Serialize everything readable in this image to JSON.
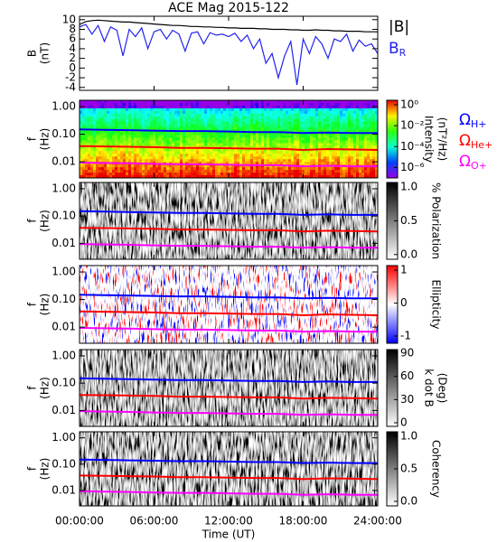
{
  "title": "ACE Mag 2015-122",
  "chart_data": [
    {
      "type": "line",
      "ylabel": [
        "B",
        "(nT)"
      ],
      "xlim": [
        0,
        24
      ],
      "ylim": [
        -4.6,
        10.7
      ],
      "yticks": [
        -4,
        -2,
        0,
        2,
        4,
        6,
        8,
        10
      ],
      "x": [
        0,
        0.5,
        1,
        1.5,
        2,
        2.5,
        3,
        3.5,
        4,
        4.5,
        5,
        5.5,
        6,
        6.5,
        7,
        7.5,
        8,
        8.5,
        9,
        9.5,
        10,
        10.5,
        11,
        11.5,
        12,
        12.5,
        13,
        13.5,
        14,
        14.5,
        15,
        15.5,
        16,
        16.5,
        17,
        17.5,
        18,
        18.5,
        19,
        19.5,
        20,
        20.5,
        21,
        21.5,
        22,
        22.5,
        23,
        23.5,
        24
      ],
      "series": [
        {
          "name": "|B|",
          "color": "#000000",
          "values": [
            9.0,
            9.6,
            9.8,
            9.9,
            9.8,
            9.7,
            9.6,
            9.5,
            9.5,
            9.4,
            9.3,
            9.2,
            9.1,
            9.0,
            8.9,
            8.8,
            8.8,
            8.7,
            8.6,
            8.6,
            8.5,
            8.5,
            8.4,
            8.4,
            8.3,
            8.3,
            8.2,
            8.2,
            8.2,
            8.1,
            8.1,
            8.0,
            8.0,
            8.0,
            7.9,
            7.9,
            7.8,
            7.8,
            7.9,
            7.8,
            7.8,
            7.7,
            7.7,
            7.6,
            7.6,
            7.6,
            7.5,
            7.5,
            7.5
          ]
        },
        {
          "name": "B",
          "subscript": "R",
          "color": "#2222ee",
          "values": [
            8.5,
            9.0,
            7.0,
            8.8,
            5.5,
            8.5,
            7.8,
            2.5,
            8.0,
            6.5,
            8.3,
            4.0,
            7.5,
            8.0,
            6.0,
            7.8,
            7.0,
            3.5,
            7.2,
            7.5,
            5.0,
            7.3,
            6.8,
            7.0,
            6.5,
            7.2,
            5.5,
            6.8,
            4.0,
            6.0,
            1.0,
            3.0,
            -2.0,
            2.5,
            5.5,
            -3.5,
            6.0,
            3.0,
            6.5,
            5.0,
            2.0,
            6.0,
            5.5,
            7.0,
            3.5,
            5.8,
            4.5,
            5.0,
            3.0
          ]
        }
      ]
    },
    {
      "type": "spectrogram",
      "ylabel": [
        "f",
        "(Hz)"
      ],
      "ylim": [
        0.0026,
        1.7
      ],
      "log_y": true,
      "yticks": [
        {
          "value": 1,
          "label": "1.00"
        },
        {
          "value": 0.1,
          "label": "0.10"
        },
        {
          "value": 0.01,
          "label": "0.01"
        }
      ],
      "colorbar": {
        "label": [
          "Intensity",
          "(nT²/Hz)"
        ],
        "colormap": "rainbow",
        "log": true,
        "lim": [
          1e-07,
          2.7
        ],
        "ticks": [
          {
            "value": 1,
            "label": "10⁰"
          },
          {
            "value": 0.01,
            "label": "10⁻²"
          },
          {
            "value": 0.0001,
            "label": "10⁻⁴"
          },
          {
            "value": 1e-06,
            "label": "10⁻⁶"
          }
        ]
      },
      "x": [
        0,
        2,
        4,
        6,
        8,
        10,
        12,
        14,
        16,
        18,
        20,
        22,
        24
      ],
      "series": [
        {
          "name": "Ω",
          "subscript": "H+",
          "color": "#0000ff",
          "values": [
            0.15,
            0.145,
            0.14,
            0.135,
            0.13,
            0.13,
            0.125,
            0.12,
            0.12,
            0.11,
            0.115,
            0.11,
            0.11
          ]
        },
        {
          "name": "Ω",
          "subscript": "He+",
          "color": "#ff0000",
          "values": [
            0.037,
            0.036,
            0.035,
            0.034,
            0.032,
            0.032,
            0.031,
            0.03,
            0.03,
            0.027,
            0.029,
            0.028,
            0.027
          ]
        },
        {
          "name": "Ω",
          "subscript": "O+",
          "color": "#ff00ff",
          "values": [
            0.0094,
            0.0091,
            0.0088,
            0.0084,
            0.0081,
            0.0081,
            0.0078,
            0.0075,
            0.0075,
            0.0069,
            0.0072,
            0.0069,
            0.0069
          ]
        }
      ]
    },
    {
      "type": "spectrogram",
      "ylabel": [
        "f",
        "(Hz)"
      ],
      "ylim": [
        0.0026,
        1.7
      ],
      "log_y": true,
      "yticks": [
        {
          "value": 1,
          "label": "1.00"
        },
        {
          "value": 0.1,
          "label": "0.10"
        },
        {
          "value": 0.01,
          "label": "0.01"
        }
      ],
      "colorbar": {
        "label": [
          "% Polarization"
        ],
        "colormap": "gray",
        "lim": [
          -0.07,
          1.07
        ],
        "ticks": [
          {
            "value": 1,
            "label": "1.0"
          },
          {
            "value": 0.5,
            "label": "0.5"
          },
          {
            "value": 0,
            "label": "0.0"
          }
        ]
      }
    },
    {
      "type": "spectrogram",
      "ylabel": [
        "f",
        "(Hz)"
      ],
      "ylim": [
        0.0026,
        1.7
      ],
      "log_y": true,
      "yticks": [
        {
          "value": 1,
          "label": "1.00"
        },
        {
          "value": 0.1,
          "label": "0.10"
        },
        {
          "value": 0.01,
          "label": "0.01"
        }
      ],
      "colorbar": {
        "label": [
          "Ellipticity"
        ],
        "colormap": "bwr",
        "lim": [
          -1.22,
          1.14
        ],
        "ticks": [
          1,
          0,
          -1
        ]
      }
    },
    {
      "type": "spectrogram",
      "ylabel": [
        "f",
        "(Hz)"
      ],
      "ylim": [
        0.0026,
        1.7
      ],
      "log_y": true,
      "yticks": [
        {
          "value": 1,
          "label": "1.00"
        },
        {
          "value": 0.1,
          "label": "0.10"
        },
        {
          "value": 0.01,
          "label": "0.01"
        }
      ],
      "colorbar": {
        "label": [
          "k dot B",
          "(Deg)"
        ],
        "colormap": "gray",
        "lim": [
          -4.7,
          94.7
        ],
        "ticks": [
          90,
          60,
          30,
          0
        ]
      }
    },
    {
      "type": "spectrogram",
      "ylabel": [
        "f",
        "(Hz)"
      ],
      "ylim": [
        0.0026,
        1.7
      ],
      "log_y": true,
      "yticks": [
        {
          "value": 1,
          "label": "1.00"
        },
        {
          "value": 0.1,
          "label": "0.10"
        },
        {
          "value": 0.01,
          "label": "0.01"
        }
      ],
      "colorbar": {
        "label": [
          "Coherency"
        ],
        "colormap": "gray",
        "lim": [
          -0.07,
          1.07
        ],
        "ticks": [
          {
            "value": 1,
            "label": "1.0"
          },
          {
            "value": 0.5,
            "label": "0.5"
          },
          {
            "value": 0,
            "label": "0.0"
          }
        ]
      },
      "xlabel": "Time (UT)",
      "xlim": [
        0,
        24
      ],
      "xticks": [
        {
          "value": 0,
          "label": "00:00:00"
        },
        {
          "value": 6,
          "label": "06:00:00"
        },
        {
          "value": 12,
          "label": "12:00:00"
        },
        {
          "value": 18,
          "label": "18:00:00"
        },
        {
          "value": 24,
          "label": "24:00:00"
        }
      ]
    }
  ]
}
